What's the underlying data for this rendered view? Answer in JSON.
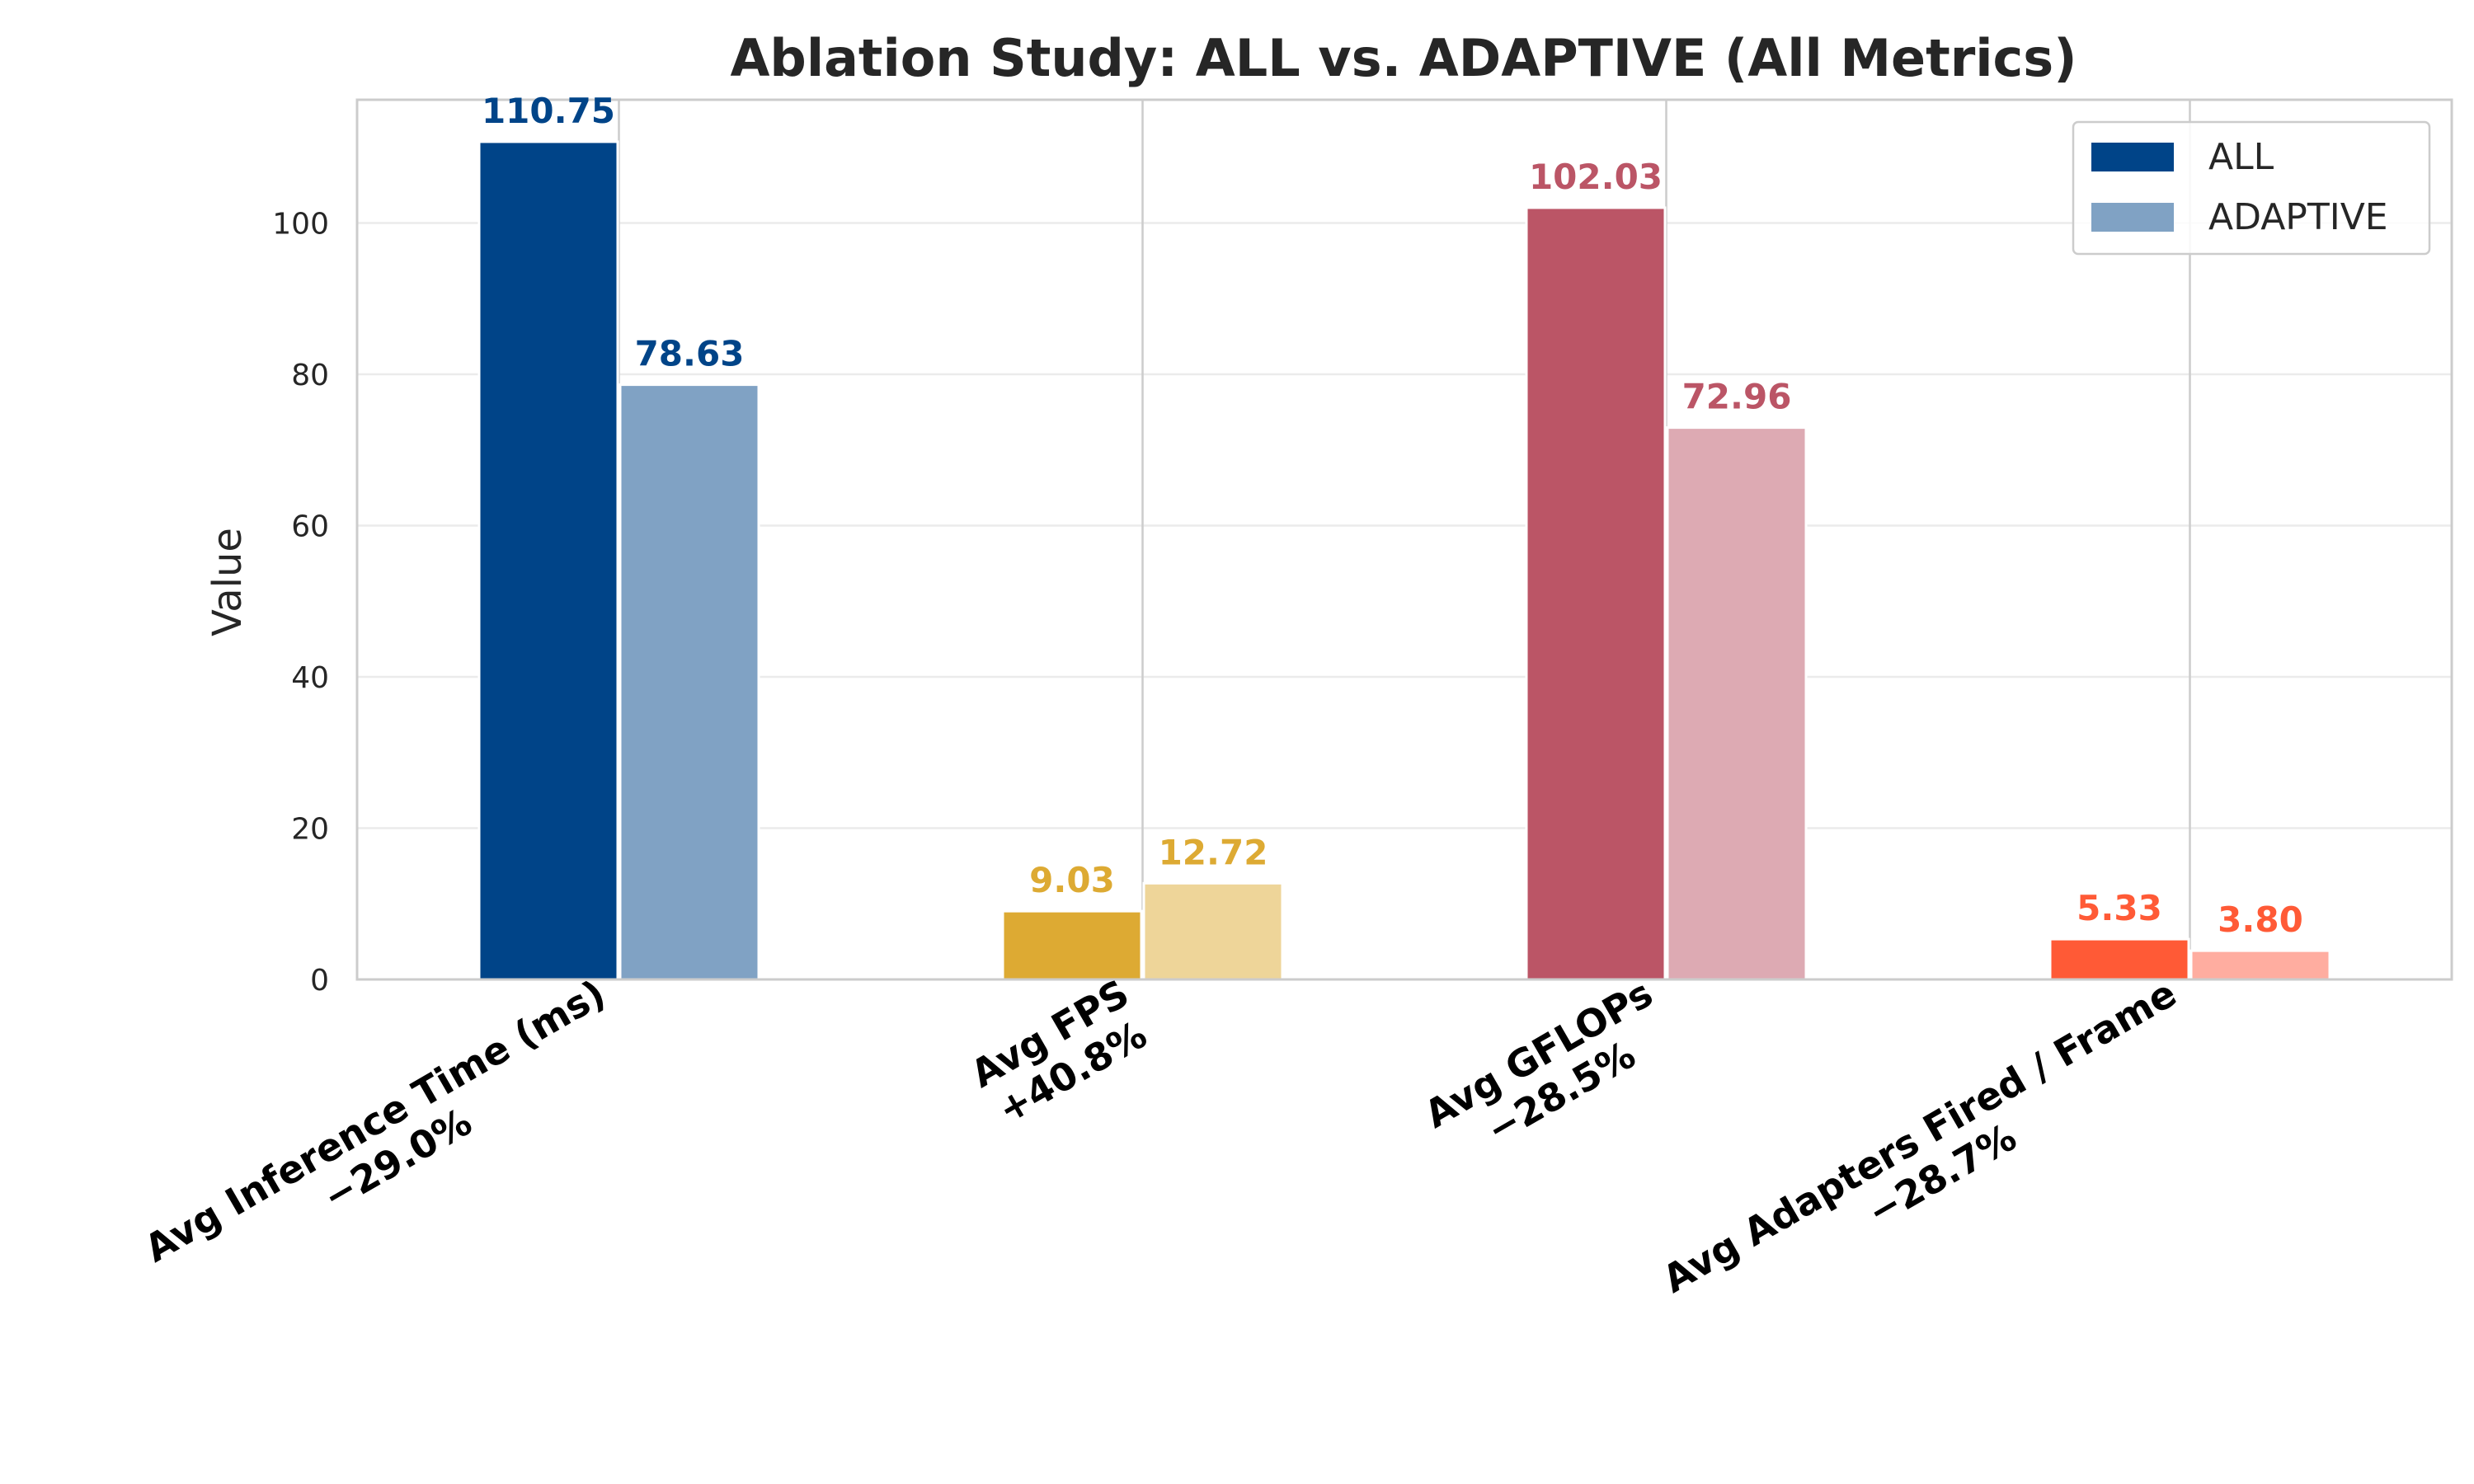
{
  "chart_data": {
    "type": "bar",
    "title": "Ablation Study: ALL vs. ADAPTIVE (All Metrics)",
    "xlabel": "",
    "ylabel": "Value",
    "ylim": [
      0,
      116.3
    ],
    "yticks": [
      0,
      20,
      40,
      60,
      80,
      100
    ],
    "grid": true,
    "legend_position": "top-right",
    "categories": [
      [
        "Avg Inference Time (ms)",
        "−29.0%"
      ],
      [
        "Avg FPS",
        "+40.8%"
      ],
      [
        "Avg GFLOPs",
        "−28.5%"
      ],
      [
        "Avg Adapters Fired / Frame",
        "−28.7%"
      ]
    ],
    "series": [
      {
        "name": "ALL",
        "values": [
          110.75,
          9.03,
          102.03,
          5.33
        ],
        "labels": [
          "110.75",
          "9.03",
          "102.03",
          "5.33"
        ],
        "colors": [
          "#004488",
          "#DDAA33",
          "#BB5566",
          "#FF5A36"
        ],
        "legend_color": "#004488"
      },
      {
        "name": "ADAPTIVE",
        "values": [
          78.63,
          12.72,
          72.96,
          3.8
        ],
        "labels": [
          "78.63",
          "12.72",
          "72.96",
          "3.80"
        ],
        "colors": [
          "#80A2C4",
          "#EED599",
          "#DDAAB3",
          "#FFADA0"
        ],
        "legend_color": "#80A2C4"
      }
    ],
    "label_colors": [
      "#004488",
      "#DDAA33",
      "#BB5566",
      "#FF5A36"
    ]
  }
}
